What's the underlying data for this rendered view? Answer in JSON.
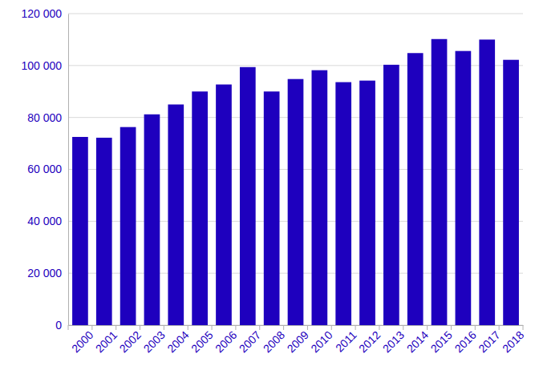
{
  "chart_data": {
    "type": "bar",
    "categories": [
      "2000",
      "2001",
      "2002",
      "2003",
      "2004",
      "2005",
      "2006",
      "2007",
      "2008",
      "2009",
      "2010",
      "2011",
      "2012",
      "2013",
      "2014",
      "2015",
      "2016",
      "2017",
      "2018"
    ],
    "values": [
      72500,
      72200,
      76300,
      81200,
      85000,
      90000,
      92700,
      99400,
      90000,
      94800,
      98200,
      93600,
      94200,
      100300,
      104800,
      110200,
      105600,
      110000,
      102200
    ],
    "color": "#1e00be",
    "ylim": [
      0,
      120000
    ],
    "yticks": [
      0,
      {
        "value": 20000,
        "label": "20 000"
      },
      {
        "value": 40000,
        "label": "40 000"
      },
      {
        "value": 60000,
        "label": "60 000"
      },
      {
        "value": 80000,
        "label": "80 000"
      },
      {
        "value": 100000,
        "label": "100 000"
      },
      {
        "value": 120000,
        "label": "120 000"
      }
    ],
    "grid": true
  }
}
